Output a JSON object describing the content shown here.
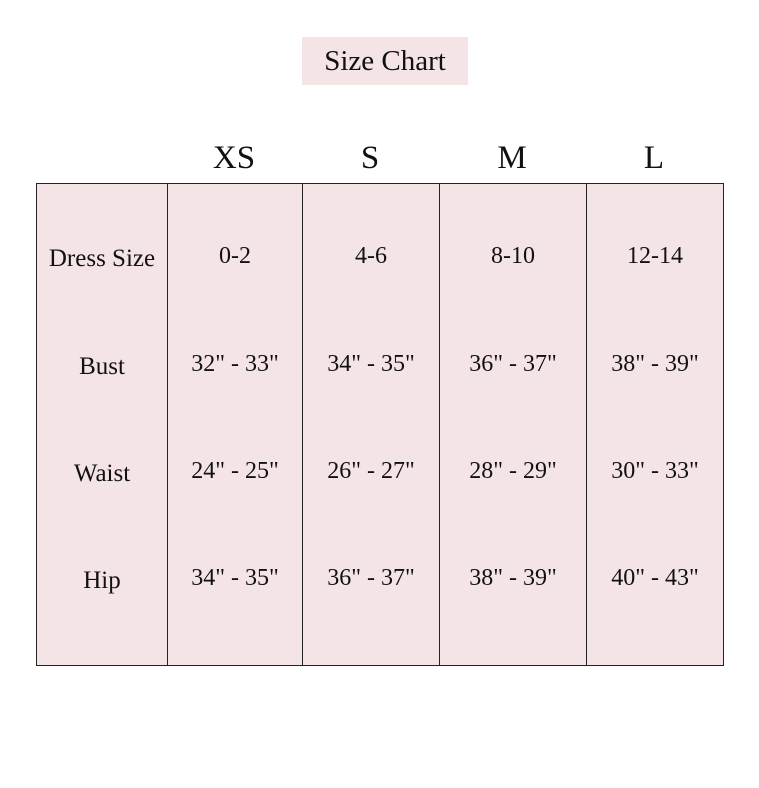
{
  "title": "Size Chart",
  "background_color": "#f5e4e5",
  "sizes": [
    "XS",
    "S",
    "M",
    "L"
  ],
  "rows": [
    {
      "label": "Dress Size",
      "values": [
        "0-2",
        "4-6",
        "8-10",
        "12-14"
      ]
    },
    {
      "label": "Bust",
      "values": [
        "32\" - 33\"",
        "34\" - 35\"",
        "36\" - 37\"",
        "38\" - 39\""
      ]
    },
    {
      "label": "Waist",
      "values": [
        "24\" - 25\"",
        "26\" - 27\"",
        "28\" - 29\"",
        "30\" - 33\""
      ]
    },
    {
      "label": "Hip",
      "values": [
        "34\" - 35\"",
        "36\" - 37\"",
        "38\" - 39\"",
        "40\" - 43\""
      ]
    }
  ]
}
